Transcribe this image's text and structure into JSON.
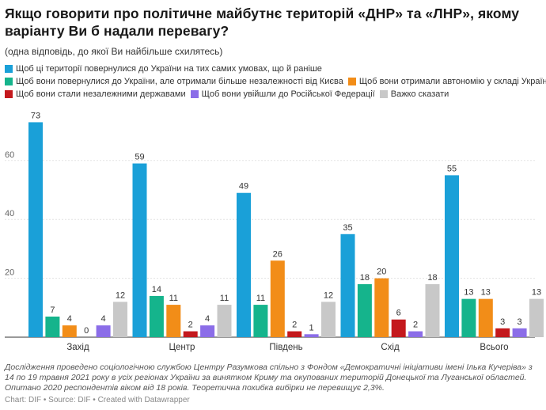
{
  "chart_data": {
    "type": "bar",
    "title": "Якщо говорити про політичне майбутнє територій «ДНР» та «ЛНР», якому варіанту Ви б надали перевагу?",
    "subtitle": "(одна відповідь, до якої Ви найбільше схилятесь)",
    "categories": [
      "Захід",
      "Центр",
      "Південь",
      "Схід",
      "Всього"
    ],
    "series": [
      {
        "name": "Щоб ці території повернулися до України на тих самих умовах, що й раніше",
        "color": "#1aa0d8",
        "values": [
          73,
          59,
          49,
          35,
          55
        ]
      },
      {
        "name": "Щоб вони повернулися до України, але отримали більше незалежності від Києва",
        "color": "#15b48c",
        "values": [
          7,
          14,
          11,
          18,
          13
        ]
      },
      {
        "name": "Щоб вони отримали автономію у складі України",
        "color": "#f28d18",
        "values": [
          4,
          11,
          26,
          20,
          13
        ]
      },
      {
        "name": "Щоб вони стали незалежними державами",
        "color": "#c4191d",
        "values": [
          0,
          2,
          2,
          6,
          3
        ]
      },
      {
        "name": "Щоб вони увійшли до Російської Федерації",
        "color": "#8b6de8",
        "values": [
          4,
          4,
          1,
          2,
          3
        ]
      },
      {
        "name": "Важко сказати",
        "color": "#c8c8c8",
        "values": [
          12,
          11,
          12,
          18,
          13
        ]
      }
    ],
    "y_ticks": [
      "20",
      "40",
      "60"
    ],
    "ylim": [
      0,
      73
    ],
    "grid": true,
    "legend_position": "top"
  },
  "footer": {
    "notes": "Дослідження проведено соціологічною службою Центру Разумкова спільно з Фондом «Демократичні ініціативи імені Ілька Кучеріва» з 14 по 19 травня 2021 року в усіх регіонах України за винятком Криму та окупованих територій Донецької та Луганської областей. Опитано 2020 респондентів віком від 18 років. Теоретична похибка вибірки не перевищує 2,3%.",
    "byline": "Chart: DIF • Source: DIF • Created with Datawrapper"
  }
}
